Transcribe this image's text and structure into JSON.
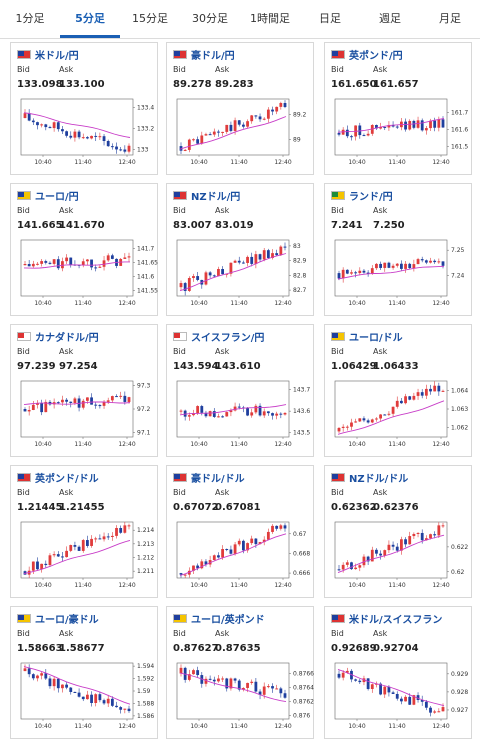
{
  "tabs": [
    {
      "label": "1分足",
      "active": false
    },
    {
      "label": "5分足",
      "active": true
    },
    {
      "label": "15分足",
      "active": false
    },
    {
      "label": "30分足",
      "active": false
    },
    {
      "label": "1時間足",
      "active": false
    },
    {
      "label": "日足",
      "active": false
    },
    {
      "label": "週足",
      "active": false
    },
    {
      "label": "月足",
      "active": false
    }
  ],
  "bid_label": "Bid",
  "ask_label": "Ask",
  "time_labels": [
    "10:40",
    "11:40",
    "12:40"
  ],
  "colors": {
    "up": "#e03c3c",
    "down": "#1f3f9e",
    "ma": "#c83dc8",
    "ma2": "#2a8a9a",
    "pair": "#1a4fa0",
    "tab_active": "#1a5fb4"
  },
  "cards": [
    {
      "pair": "米ドル/円",
      "bid": "133.098",
      "ask": "133.100",
      "flag": [
        "#1f3f9e",
        "#d33"
      ],
      "ticks": [
        "133.4",
        "133.2",
        "133"
      ],
      "ymin": 132.95,
      "ymax": 133.48,
      "start": 133.3,
      "end": 133.0,
      "ma_start": 133.35,
      "ma_end": 133.12,
      "trend": "down"
    },
    {
      "pair": "豪ドル/円",
      "bid": "89.278",
      "ask": "89.283",
      "flag": [
        "#1f3f9e",
        "#d33"
      ],
      "ticks": [
        "89.2",
        "89"
      ],
      "ymin": 88.88,
      "ymax": 89.32,
      "start": 88.95,
      "end": 89.26,
      "ma_start": 88.92,
      "ma_end": 89.18,
      "trend": "up"
    },
    {
      "pair": "英ポンド/円",
      "bid": "161.650",
      "ask": "161.657",
      "flag": [
        "#1f3f9e",
        "#d33"
      ],
      "ticks": [
        "161.7",
        "161.6",
        "161.5"
      ],
      "ymin": 161.45,
      "ymax": 161.78,
      "start": 161.58,
      "end": 161.64,
      "ma_start": 161.58,
      "ma_end": 161.66,
      "trend": "flat"
    },
    {
      "pair": "ユーロ/円",
      "bid": "141.665",
      "ask": "141.670",
      "flag": [
        "#1f3f9e",
        "#f5c400"
      ],
      "ticks": [
        "141.7",
        "141.65",
        "141.6",
        "141.55"
      ],
      "ymin": 141.53,
      "ymax": 141.73,
      "start": 141.64,
      "end": 141.66,
      "ma_start": 141.63,
      "ma_end": 141.65,
      "trend": "flat"
    },
    {
      "pair": "NZドル/円",
      "bid": "83.007",
      "ask": "83.019",
      "flag": [
        "#1f3f9e",
        "#d33"
      ],
      "ticks": [
        "83",
        "82.9",
        "82.8",
        "82.7"
      ],
      "ymin": 82.66,
      "ymax": 83.04,
      "start": 82.72,
      "end": 83.0,
      "ma_start": 82.7,
      "ma_end": 82.95,
      "trend": "up"
    },
    {
      "pair": "ランド/円",
      "bid": "7.241",
      "ask": "7.250",
      "flag": [
        "#1e8c3a",
        "#f5c400"
      ],
      "ticks": [
        "7.25",
        "7.24"
      ],
      "ymin": 7.232,
      "ymax": 7.254,
      "start": 7.241,
      "end": 7.246,
      "ma_start": 7.239,
      "ma_end": 7.244,
      "trend": "flat"
    },
    {
      "pair": "カナダドル/円",
      "bid": "97.239",
      "ask": "97.254",
      "flag": [
        "#d33",
        "#ffffff"
      ],
      "ticks": [
        "97.3",
        "97.2",
        "97.1"
      ],
      "ymin": 97.08,
      "ymax": 97.32,
      "start": 97.2,
      "end": 97.24,
      "ma_start": 97.22,
      "ma_end": 97.23,
      "trend": "flat"
    },
    {
      "pair": "スイスフラン/円",
      "bid": "143.594",
      "ask": "143.610",
      "flag": [
        "#d33",
        "#ffffff"
      ],
      "ticks": [
        "143.7",
        "143.6",
        "143.5"
      ],
      "ymin": 143.48,
      "ymax": 143.74,
      "start": 143.6,
      "end": 143.6,
      "ma_start": 143.58,
      "ma_end": 143.63,
      "trend": "flat"
    },
    {
      "pair": "ユーロ/ドル",
      "bid": "1.06429",
      "ask": "1.06433",
      "flag": [
        "#1f3f9e",
        "#f5c400"
      ],
      "ticks": [
        "1.064",
        "1.063",
        "1.062"
      ],
      "ymin": 1.0615,
      "ymax": 1.0645,
      "start": 1.0618,
      "end": 1.0643,
      "ma_start": 1.0616,
      "ma_end": 1.0634,
      "trend": "up"
    },
    {
      "pair": "英ポンド/ドル",
      "bid": "1.21445",
      "ask": "1.21455",
      "flag": [
        "#1f3f9e",
        "#d33"
      ],
      "ticks": [
        "1.214",
        "1.213",
        "1.212",
        "1.211"
      ],
      "ymin": 1.2105,
      "ymax": 1.2146,
      "start": 1.211,
      "end": 1.2144,
      "ma_start": 1.2108,
      "ma_end": 1.2132,
      "trend": "up"
    },
    {
      "pair": "豪ドル/ドル",
      "bid": "0.67072",
      "ask": "0.67081",
      "flag": [
        "#1f3f9e",
        "#d33"
      ],
      "ticks": [
        "0.67",
        "0.668",
        "0.666"
      ],
      "ymin": 0.6655,
      "ymax": 0.6712,
      "start": 0.666,
      "end": 0.6708,
      "ma_start": 0.6658,
      "ma_end": 0.67,
      "trend": "up"
    },
    {
      "pair": "NZドル/ドル",
      "bid": "0.62362",
      "ask": "0.62376",
      "flag": [
        "#1f3f9e",
        "#d33"
      ],
      "ticks": [
        "0.622",
        "0.62"
      ],
      "ymin": 0.6195,
      "ymax": 0.624,
      "start": 0.6202,
      "end": 0.6237,
      "ma_start": 0.62,
      "ma_end": 0.623,
      "trend": "up"
    },
    {
      "pair": "ユーロ/豪ドル",
      "bid": "1.58663",
      "ask": "1.58677",
      "flag": [
        "#1f3f9e",
        "#f5c400"
      ],
      "ticks": [
        "1.594",
        "1.592",
        "1.59",
        "1.588",
        "1.586"
      ],
      "ymin": 1.5855,
      "ymax": 1.5945,
      "start": 1.5932,
      "end": 1.5866,
      "ma_start": 1.594,
      "ma_end": 1.588,
      "trend": "down"
    },
    {
      "pair": "ユーロ/英ポンド",
      "bid": "0.87627",
      "ask": "0.87635",
      "flag": [
        "#1f3f9e",
        "#f5c400"
      ],
      "ticks": [
        "0.8766",
        "0.8764",
        "0.8762",
        "0.876"
      ],
      "ymin": 0.87595,
      "ymax": 0.87675,
      "start": 0.8766,
      "end": 0.8763,
      "ma_start": 0.8766,
      "ma_end": 0.8762,
      "trend": "down"
    },
    {
      "pair": "米ドル/スイスフラン",
      "bid": "0.92689",
      "ask": "0.92704",
      "flag": [
        "#1f3f9e",
        "#d33"
      ],
      "ticks": [
        "0.929",
        "0.928",
        "0.927"
      ],
      "ymin": 0.9265,
      "ymax": 0.9296,
      "start": 0.929,
      "end": 0.9269,
      "ma_start": 0.9292,
      "ma_end": 0.9272,
      "trend": "down"
    }
  ]
}
